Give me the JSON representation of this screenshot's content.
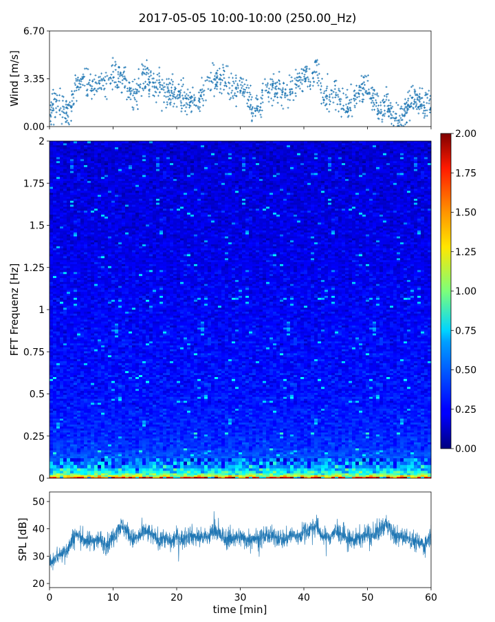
{
  "figure": {
    "title": "2017-05-05 10:00-10:00 (250.00_Hz)"
  },
  "chart_data": [
    {
      "id": "wind",
      "type": "scatter",
      "ylabel": "Wind [m/s]",
      "xlabel": "",
      "xlim": [
        0,
        60
      ],
      "ylim": [
        0,
        6.7
      ],
      "yticks": [
        0.0,
        3.35,
        6.7
      ],
      "ytick_labels": [
        "0.00",
        "3.35",
        "6.70"
      ],
      "color": "#1f77b4",
      "marker": "+",
      "trend": {
        "x": [
          0,
          1,
          2,
          3,
          4,
          5,
          6,
          7,
          8,
          9,
          10,
          11,
          12,
          13,
          14,
          15,
          16,
          17,
          18,
          19,
          20,
          21,
          22,
          23,
          24,
          25,
          26,
          27,
          28,
          29,
          30,
          31,
          32,
          33,
          34,
          35,
          36,
          37,
          38,
          39,
          40,
          41,
          42,
          43,
          44,
          45,
          46,
          47,
          48,
          49,
          50,
          51,
          52,
          53,
          54,
          55,
          56,
          57,
          58,
          59,
          60
        ],
        "y": [
          1.2,
          1.5,
          1.3,
          0.8,
          2.8,
          3.2,
          2.9,
          3.0,
          3.1,
          2.6,
          3.5,
          3.4,
          3.0,
          2.0,
          2.7,
          3.6,
          3.2,
          2.7,
          2.3,
          2.6,
          2.2,
          2.0,
          1.8,
          1.9,
          2.1,
          3.0,
          3.2,
          3.3,
          3.0,
          2.6,
          2.8,
          2.5,
          1.0,
          1.4,
          2.6,
          2.5,
          2.8,
          2.3,
          2.6,
          3.0,
          3.6,
          3.2,
          4.2,
          2.0,
          2.3,
          2.5,
          1.8,
          1.5,
          2.0,
          2.6,
          2.9,
          2.1,
          1.0,
          2.0,
          0.7,
          0.6,
          1.0,
          2.2,
          1.7,
          1.3,
          1.8
        ]
      }
    },
    {
      "id": "spectrogram",
      "type": "heatmap",
      "ylabel": "FFT Frequenz [Hz]",
      "xlim": [
        0,
        60
      ],
      "ylim": [
        0,
        2
      ],
      "yticks": [
        0,
        0.25,
        0.5,
        0.75,
        1,
        1.25,
        1.5,
        1.75,
        2
      ],
      "ytick_labels": [
        "0",
        "0.25",
        "0.5",
        "0.75",
        "1",
        "1.25",
        "1.5",
        "1.75",
        "2"
      ],
      "colormap": "jet",
      "colorbar": {
        "range": [
          0,
          2
        ],
        "ticks": [
          0.0,
          0.25,
          0.5,
          0.75,
          1.0,
          1.25,
          1.5,
          1.75,
          2.0
        ],
        "tick_labels": [
          "0.00",
          "0.25",
          "0.50",
          "0.75",
          "1.00",
          "1.25",
          "1.50",
          "1.75",
          "2.00"
        ]
      },
      "frequency_profile": {
        "freq": [
          0,
          0.01,
          0.02,
          0.04,
          0.07,
          0.1,
          0.15,
          0.25,
          0.5,
          1.0,
          1.5,
          2.0
        ],
        "mean_value": [
          1.9,
          1.4,
          1.0,
          0.75,
          0.55,
          0.45,
          0.38,
          0.32,
          0.28,
          0.24,
          0.2,
          0.17
        ]
      }
    },
    {
      "id": "spl",
      "type": "line",
      "ylabel": "SPL [dB]",
      "xlabel": "time [min]",
      "xlim": [
        0,
        60
      ],
      "ylim": [
        18.5,
        53.5
      ],
      "yticks": [
        20,
        30,
        40,
        50
      ],
      "ytick_labels": [
        "20",
        "30",
        "40",
        "50"
      ],
      "xticks": [
        0,
        10,
        20,
        30,
        40,
        50,
        60
      ],
      "xtick_labels": [
        "0",
        "10",
        "20",
        "30",
        "40",
        "50",
        "60"
      ],
      "color": "#1f77b4",
      "trend": {
        "x": [
          0,
          1,
          2,
          3,
          4,
          5,
          6,
          7,
          8,
          9,
          10,
          11,
          12,
          13,
          14,
          15,
          16,
          17,
          18,
          19,
          20,
          21,
          22,
          23,
          24,
          25,
          26,
          27,
          28,
          29,
          30,
          31,
          32,
          33,
          34,
          35,
          36,
          37,
          38,
          39,
          40,
          41,
          42,
          43,
          44,
          45,
          46,
          47,
          48,
          49,
          50,
          51,
          52,
          53,
          54,
          55,
          56,
          57,
          58,
          59,
          60
        ],
        "y": [
          27,
          30,
          31,
          33,
          38,
          37,
          35,
          36,
          36,
          34,
          37,
          41,
          40,
          36,
          37,
          39,
          38,
          36,
          37,
          35,
          37,
          36,
          38,
          37,
          37,
          37,
          40,
          37,
          36,
          37,
          37,
          36,
          37,
          36,
          38,
          37,
          37,
          36,
          38,
          37,
          39,
          40,
          41,
          37,
          37,
          39,
          38,
          36,
          36,
          37,
          38,
          37,
          40,
          42,
          38,
          37,
          37,
          36,
          35,
          34,
          38
        ]
      }
    }
  ]
}
